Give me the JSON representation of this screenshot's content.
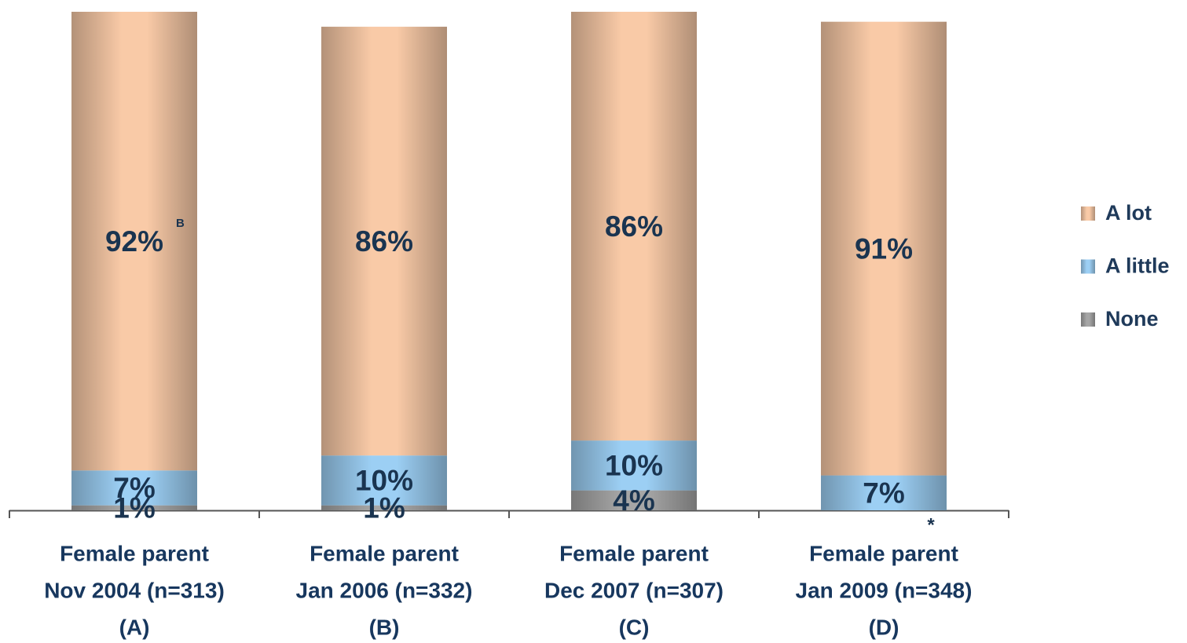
{
  "chart_data": {
    "type": "stacked_bar",
    "categories": [
      [
        "Female parent",
        "Nov 2004 (n=313)",
        "(A)"
      ],
      [
        "Female parent",
        "Jan 2006 (n=332)",
        "(B)"
      ],
      [
        "Female parent",
        "Dec 2007 (n=307)",
        "(C)"
      ],
      [
        "Female parent",
        "Jan 2009 (n=348)",
        "(D)"
      ]
    ],
    "series": [
      {
        "name": "None",
        "color": "#a6a6a6",
        "values": [
          1,
          1,
          4,
          0
        ],
        "value_labels": [
          "1%",
          "1%",
          "4%",
          "*"
        ]
      },
      {
        "name": "A little",
        "color": "#9ccff4",
        "values": [
          7,
          10,
          10,
          7
        ],
        "value_labels": [
          "7%",
          "10%",
          "10%",
          "7%"
        ]
      },
      {
        "name": "A lot",
        "color": "#f9caa7",
        "values": [
          92,
          86,
          86,
          91
        ],
        "value_labels": [
          "92%",
          "86%",
          "86%",
          "91%"
        ],
        "superscripts": [
          "B",
          null,
          null,
          null
        ]
      }
    ],
    "ylim": [
      0,
      100
    ]
  }
}
